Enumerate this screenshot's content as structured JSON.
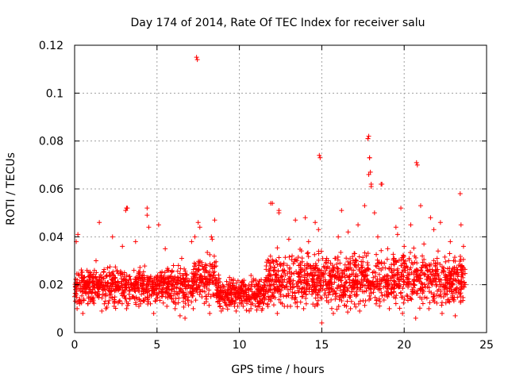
{
  "chart_data": {
    "type": "scatter",
    "title": "Day 174 of 2014, Rate Of TEC Index for receiver salu",
    "xlabel": "GPS time / hours",
    "ylabel": "ROTI / TECUs",
    "xlim": [
      0,
      25
    ],
    "ylim": [
      0,
      0.12
    ],
    "xticks": [
      0,
      5,
      10,
      15,
      20,
      25
    ],
    "xtick_labels": [
      "0",
      "5",
      "10",
      "15",
      "20",
      "25"
    ],
    "yticks": [
      0,
      0.02,
      0.04,
      0.06,
      0.08,
      0.1,
      0.12
    ],
    "ytick_labels": [
      "0",
      "0.02",
      "0.04",
      "0.06",
      "0.08",
      "0.1",
      "0.12"
    ],
    "grid": true,
    "marker": "+",
    "marker_color": "#ff0000",
    "series": [
      {
        "name": "ROTI",
        "x": [
          0.0,
          0.1,
          0.2,
          0.3,
          0.5,
          0.7,
          0.9,
          1.1,
          1.3,
          1.5,
          1.6,
          1.7,
          1.9,
          2.1,
          2.3,
          2.5,
          2.7,
          2.9,
          3.1,
          3.2,
          3.3,
          3.5,
          3.7,
          3.9,
          4.1,
          4.3,
          4.4,
          4.5,
          4.7,
          4.9,
          5.1,
          5.3,
          5.5,
          5.7,
          5.9,
          6.1,
          6.3,
          6.5,
          6.7,
          6.9,
          7.1,
          7.3,
          7.4,
          7.5,
          7.7,
          7.9,
          8.1,
          8.3,
          8.5,
          8.7,
          8.9,
          9.1,
          9.3,
          9.5,
          9.7,
          9.9,
          10.1,
          10.3,
          10.5,
          10.7,
          10.9,
          11.1,
          11.3,
          11.5,
          11.7,
          11.9,
          12.0,
          12.2,
          12.4,
          12.6,
          12.8,
          13.0,
          13.2,
          13.4,
          13.6,
          13.8,
          14.0,
          14.2,
          14.4,
          14.6,
          14.8,
          14.9,
          15.0,
          15.2,
          15.4,
          15.6,
          15.8,
          16.0,
          16.2,
          16.4,
          16.6,
          16.8,
          17.0,
          17.2,
          17.4,
          17.6,
          17.8,
          17.9,
          18.0,
          18.2,
          18.4,
          18.6,
          18.8,
          19.0,
          19.2,
          19.4,
          19.6,
          19.8,
          20.0,
          20.2,
          20.4,
          20.6,
          20.8,
          21.0,
          21.2,
          21.4,
          21.6,
          21.8,
          22.0,
          22.2,
          22.4,
          22.6,
          22.8,
          23.0,
          23.2,
          23.4,
          23.6,
          23.7,
          0.05,
          0.25,
          0.6,
          1.0,
          1.4,
          1.8,
          2.2,
          2.6,
          3.0,
          3.4,
          3.8,
          4.2,
          4.6,
          5.0,
          5.4,
          5.8,
          6.2,
          6.6,
          7.0,
          7.6,
          8.0,
          8.4,
          8.8,
          9.2,
          9.6,
          10.0,
          10.4,
          10.8,
          11.2,
          11.6,
          12.1,
          12.5,
          12.9,
          13.3,
          13.7,
          14.1,
          14.5,
          15.1,
          15.5,
          15.9,
          16.3,
          16.7,
          17.1,
          17.5,
          18.1,
          18.5,
          18.9,
          19.3,
          19.7,
          20.1,
          20.5,
          20.9,
          21.3,
          21.7,
          22.1,
          22.5,
          22.9,
          23.3,
          23.65,
          0.15,
          0.4,
          0.8,
          1.2,
          1.65,
          2.0,
          2.4,
          2.8,
          3.15,
          3.6,
          4.0,
          4.45,
          4.8,
          5.2,
          5.6,
          6.0,
          6.4,
          6.8,
          7.2,
          7.55,
          8.2,
          8.6,
          9.0,
          9.4,
          9.8,
          10.2,
          10.6,
          11.0,
          11.4,
          11.8,
          12.3,
          12.7,
          13.1,
          13.5,
          13.9,
          14.3,
          14.7,
          15.3,
          15.7,
          16.1,
          16.5,
          16.9,
          17.3,
          17.7,
          18.3,
          18.7,
          19.1,
          19.5,
          19.9,
          20.3,
          20.7,
          21.1,
          21.5,
          21.9,
          22.3,
          22.7,
          23.1,
          23.5,
          7.45,
          14.85,
          17.85,
          17.9,
          17.95,
          18.0,
          18.65,
          20.75,
          23.45,
          17.8,
          17.85,
          4.4,
          3.1,
          3.15,
          12.4,
          11.9,
          8.35,
          7.6,
          19.5,
          22.2
        ],
        "y": [
          0.015,
          0.038,
          0.041,
          0.012,
          0.008,
          0.018,
          0.022,
          0.014,
          0.03,
          0.046,
          0.02,
          0.016,
          0.01,
          0.025,
          0.04,
          0.018,
          0.013,
          0.036,
          0.022,
          0.052,
          0.019,
          0.015,
          0.038,
          0.011,
          0.024,
          0.017,
          0.049,
          0.044,
          0.021,
          0.013,
          0.045,
          0.018,
          0.035,
          0.026,
          0.014,
          0.01,
          0.028,
          0.031,
          0.006,
          0.02,
          0.038,
          0.04,
          0.115,
          0.046,
          0.021,
          0.017,
          0.025,
          0.04,
          0.047,
          0.013,
          0.009,
          0.019,
          0.016,
          0.022,
          0.012,
          0.011,
          0.018,
          0.02,
          0.014,
          0.01,
          0.016,
          0.013,
          0.019,
          0.021,
          0.012,
          0.027,
          0.054,
          0.03,
          0.051,
          0.012,
          0.024,
          0.039,
          0.032,
          0.047,
          0.028,
          0.015,
          0.048,
          0.038,
          0.027,
          0.046,
          0.043,
          0.073,
          0.004,
          0.022,
          0.03,
          0.019,
          0.031,
          0.04,
          0.051,
          0.024,
          0.042,
          0.017,
          0.033,
          0.045,
          0.027,
          0.053,
          0.081,
          0.073,
          0.061,
          0.05,
          0.04,
          0.062,
          0.029,
          0.035,
          0.018,
          0.031,
          0.041,
          0.052,
          0.036,
          0.027,
          0.045,
          0.02,
          0.07,
          0.053,
          0.037,
          0.026,
          0.048,
          0.043,
          0.031,
          0.02,
          0.027,
          0.016,
          0.038,
          0.03,
          0.025,
          0.058,
          0.036,
          0.02,
          0.018,
          0.013,
          0.02,
          0.017,
          0.021,
          0.012,
          0.016,
          0.019,
          0.015,
          0.02,
          0.014,
          0.018,
          0.012,
          0.016,
          0.021,
          0.015,
          0.019,
          0.013,
          0.017,
          0.018,
          0.014,
          0.016,
          0.012,
          0.015,
          0.013,
          0.014,
          0.016,
          0.012,
          0.015,
          0.017,
          0.02,
          0.016,
          0.021,
          0.019,
          0.022,
          0.018,
          0.02,
          0.021,
          0.017,
          0.023,
          0.019,
          0.022,
          0.02,
          0.024,
          0.021,
          0.018,
          0.022,
          0.019,
          0.023,
          0.02,
          0.017,
          0.024,
          0.019,
          0.021,
          0.018,
          0.022,
          0.02,
          0.017,
          0.019,
          0.01,
          0.024,
          0.012,
          0.026,
          0.009,
          0.027,
          0.011,
          0.024,
          0.01,
          0.026,
          0.012,
          0.023,
          0.008,
          0.025,
          0.011,
          0.028,
          0.007,
          0.024,
          0.01,
          0.028,
          0.008,
          0.022,
          0.01,
          0.023,
          0.009,
          0.021,
          0.009,
          0.02,
          0.01,
          0.022,
          0.008,
          0.029,
          0.011,
          0.03,
          0.01,
          0.028,
          0.012,
          0.031,
          0.008,
          0.029,
          0.011,
          0.03,
          0.009,
          0.032,
          0.012,
          0.027,
          0.01,
          0.03,
          0.008,
          0.031,
          0.006,
          0.032,
          0.01,
          0.029,
          0.008,
          0.03,
          0.007,
          0.028,
          0.114,
          0.074,
          0.082,
          0.073,
          0.067,
          0.062,
          0.062,
          0.071,
          0.045,
          0.081,
          0.066,
          0.052,
          0.051,
          0.052,
          0.05,
          0.054,
          0.039,
          0.044,
          0.044,
          0.046
        ]
      }
    ],
    "density_clusters": [
      {
        "x0": 0,
        "x1": 7.2,
        "lo": 0.009,
        "hi": 0.025
      },
      {
        "x0": 7.2,
        "x1": 8.6,
        "lo": 0.01,
        "hi": 0.03
      },
      {
        "x0": 8.6,
        "x1": 11.6,
        "lo": 0.008,
        "hi": 0.021
      },
      {
        "x0": 11.6,
        "x1": 23.7,
        "lo": 0.007,
        "hi": 0.03
      }
    ]
  }
}
